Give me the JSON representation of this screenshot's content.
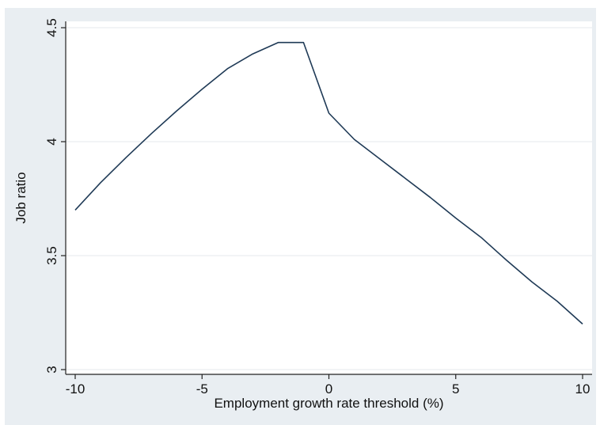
{
  "chart_data": {
    "type": "line",
    "title": "",
    "xlabel": "Employment growth rate threshold (%)",
    "ylabel": "Job ratio",
    "xlim": [
      -10,
      10
    ],
    "ylim": [
      3,
      4.5
    ],
    "xticks": [
      -10,
      -5,
      0,
      5,
      10
    ],
    "yticks": [
      3,
      3.5,
      4,
      4.5
    ],
    "xtick_labels": [
      "-10",
      "-5",
      "0",
      "5",
      "10"
    ],
    "ytick_labels": [
      "3",
      "3.5",
      "4",
      "4.5"
    ],
    "grid": "horizontal",
    "legend": "none",
    "colors": {
      "line": "#1f3a56",
      "plot_background": "#ffffff",
      "outer_background": "#e9eef2",
      "grid": "#e6eaee",
      "axis": "#222222"
    },
    "series": [
      {
        "x": [
          -10,
          -9,
          -8,
          -7,
          -6,
          -5,
          -4,
          -3,
          -2,
          -1,
          0,
          1,
          2,
          3,
          4,
          5,
          6,
          7,
          8,
          9,
          10
        ],
        "values": [
          3.7,
          3.82,
          3.93,
          4.035,
          4.135,
          4.23,
          4.32,
          4.385,
          4.435,
          4.435,
          4.125,
          4.01,
          3.925,
          3.84,
          3.755,
          3.665,
          3.58,
          3.48,
          3.385,
          3.3,
          3.2
        ]
      }
    ]
  }
}
